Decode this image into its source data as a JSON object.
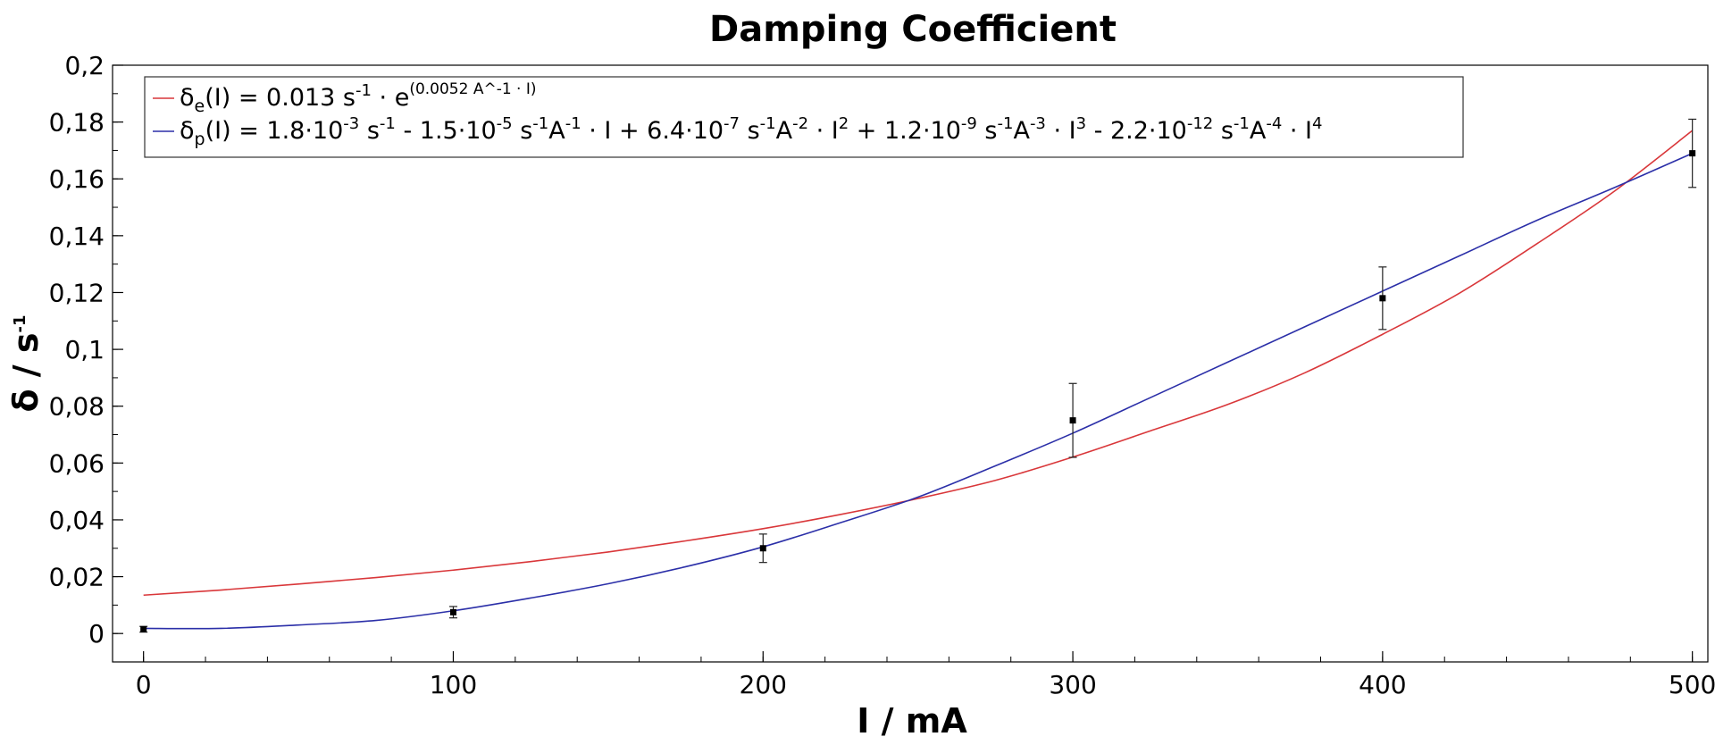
{
  "chart_data": {
    "type": "line",
    "title": "Damping Coefficient",
    "xlabel": "I / mA",
    "ylabel": {
      "base": "δ / s",
      "sup": "-1"
    },
    "xlim": [
      -10,
      505
    ],
    "ylim": [
      -0.01,
      0.2
    ],
    "x_ticks": [
      0,
      100,
      200,
      300,
      400,
      500
    ],
    "x_tick_labels": [
      "0",
      "100",
      "200",
      "300",
      "400",
      "500"
    ],
    "x_minor_step": 20,
    "y_ticks": [
      0,
      0.02,
      0.04,
      0.06,
      0.08,
      0.1,
      0.12,
      0.14,
      0.16,
      0.18,
      0.2
    ],
    "y_tick_labels": [
      "0",
      "0,02",
      "0,04",
      "0,06",
      "0,08",
      "0,1",
      "0,12",
      "0,14",
      "0,16",
      "0,18",
      "0,2"
    ],
    "y_minor_step": 0.01,
    "grid": false,
    "legend_position": "top-left",
    "measurements": {
      "name": "",
      "x": [
        0,
        100,
        200,
        300,
        400,
        500
      ],
      "y": [
        0.0015,
        0.0075,
        0.03,
        0.075,
        0.118,
        0.169
      ],
      "yerr": [
        0.001,
        0.002,
        0.005,
        0.013,
        0.011,
        0.012
      ],
      "color": "#000000"
    },
    "series": [
      {
        "name": "δe(I) = 0.013 s-1 · e(0.0052 A^-1 · I)",
        "legend_parts": [
          {
            "t": "δ"
          },
          {
            "t": "e",
            "s": "sub"
          },
          {
            "t": "(I) = 0.013 s"
          },
          {
            "t": "-1",
            "s": "sup"
          },
          {
            "t": " · e"
          },
          {
            "t": "(0.0052 A^-1 · I)",
            "s": "sup-small"
          }
        ],
        "color": "#d9373a",
        "x": [
          0,
          25,
          50,
          75,
          100,
          125,
          150,
          175,
          200,
          225,
          250,
          275,
          300,
          325,
          350,
          375,
          400,
          425,
          450,
          475,
          500
        ],
        "y": [
          0.0135,
          0.0153,
          0.0174,
          0.0197,
          0.0223,
          0.0253,
          0.0287,
          0.0326,
          0.0369,
          0.0419,
          0.0475,
          0.0539,
          0.0621,
          0.0713,
          0.0806,
          0.0918,
          0.1053,
          0.1199,
          0.1373,
          0.1558,
          0.177
        ]
      },
      {
        "name": "δp(I) = 1.8·10-3 s-1 - 1.5·10-5 s-1A-1 · I + 6.4·10-7 s-1A-2 · I2 + 1.2·10-9 s-1A-3 · I3 - 2.2·10-12 s-1A-4 · I4",
        "legend_parts": [
          {
            "t": "δ"
          },
          {
            "t": "p",
            "s": "sub"
          },
          {
            "t": "(I) = 1.8·10"
          },
          {
            "t": "-3",
            "s": "sup"
          },
          {
            "t": " s"
          },
          {
            "t": "-1",
            "s": "sup"
          },
          {
            "t": " - 1.5·10"
          },
          {
            "t": "-5",
            "s": "sup"
          },
          {
            "t": " s"
          },
          {
            "t": "-1",
            "s": "sup"
          },
          {
            "t": "A"
          },
          {
            "t": "-1",
            "s": "sup"
          },
          {
            "t": " · I + 6.4·10"
          },
          {
            "t": "-7",
            "s": "sup"
          },
          {
            "t": " s"
          },
          {
            "t": "-1",
            "s": "sup"
          },
          {
            "t": "A"
          },
          {
            "t": "-2",
            "s": "sup"
          },
          {
            "t": " · I"
          },
          {
            "t": "2",
            "s": "sup"
          },
          {
            "t": " + 1.2·10"
          },
          {
            "t": "-9",
            "s": "sup"
          },
          {
            "t": " s"
          },
          {
            "t": "-1",
            "s": "sup"
          },
          {
            "t": "A"
          },
          {
            "t": "-3",
            "s": "sup"
          },
          {
            "t": " · I"
          },
          {
            "t": "3",
            "s": "sup"
          },
          {
            "t": " - 2.2·10"
          },
          {
            "t": "-12",
            "s": "sup"
          },
          {
            "t": " s"
          },
          {
            "t": "-1",
            "s": "sup"
          },
          {
            "t": "A"
          },
          {
            "t": "-4",
            "s": "sup"
          },
          {
            "t": " · I"
          },
          {
            "t": "4",
            "s": "sup"
          }
        ],
        "color": "#2b2fa8",
        "x": [
          0,
          25,
          50,
          75,
          100,
          125,
          150,
          175,
          200,
          225,
          250,
          275,
          300,
          325,
          350,
          375,
          400,
          425,
          450,
          475,
          500
        ],
        "y": [
          0.0018,
          0.0018,
          0.003,
          0.0046,
          0.008,
          0.0125,
          0.0175,
          0.0235,
          0.0305,
          0.039,
          0.048,
          0.059,
          0.0705,
          0.083,
          0.0955,
          0.108,
          0.1205,
          0.133,
          0.1455,
          0.157,
          0.169
        ]
      }
    ]
  }
}
